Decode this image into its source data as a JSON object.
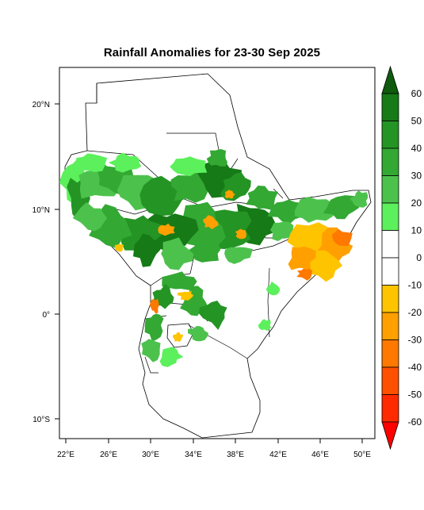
{
  "title": "Rainfall Anomalies for 23-30 Sep 2025",
  "map": {
    "region": "Greater Horn of Africa",
    "lon_range": [
      21,
      52
    ],
    "lat_range": [
      -12,
      23
    ],
    "lon_ticks": [
      "22°E",
      "26°E",
      "30°E",
      "34°E",
      "38°E",
      "42°E",
      "46°E",
      "50°E"
    ],
    "lat_ticks": [
      "20°N",
      "10°N",
      "0°",
      "10°S"
    ],
    "palette": {
      "g6": "#0f5a0f",
      "g5": "#167a16",
      "g4": "#249424",
      "g3": "#33a833",
      "g2": "#4cc24c",
      "g1": "#5cf05c",
      "o1": "#ffc400",
      "o2": "#ffa000",
      "o3": "#ff7800",
      "o4": "#ff5000",
      "o5": "#ff2a00",
      "o6": "#ff0000"
    }
  },
  "colorbar": {
    "labels": [
      "60",
      "50",
      "40",
      "30",
      "20",
      "10",
      "0",
      "-10",
      "-20",
      "-30",
      "-40",
      "-50",
      "-60"
    ],
    "colors": [
      "#0f5a0f",
      "#167a16",
      "#249424",
      "#33a833",
      "#4cc24c",
      "#5cf05c",
      "#ffffff",
      "#ffffff",
      "#ffc400",
      "#ffa000",
      "#ff7800",
      "#ff5000",
      "#ff2a00",
      "#ff0000"
    ]
  }
}
